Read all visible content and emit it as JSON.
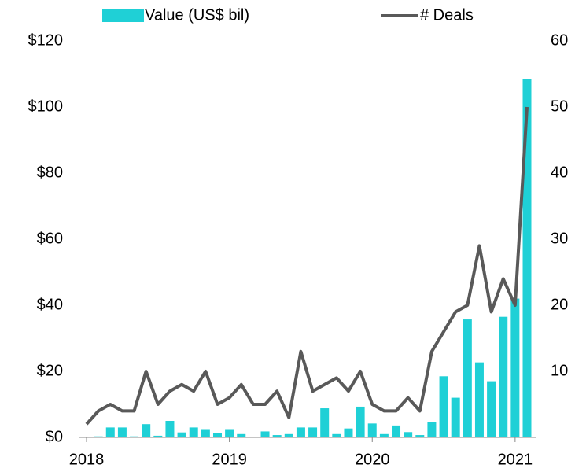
{
  "chart_data": {
    "type": "bar_line",
    "categories": [
      "2018",
      null,
      null,
      null,
      null,
      null,
      null,
      null,
      null,
      null,
      null,
      null,
      "2019",
      null,
      null,
      null,
      null,
      null,
      null,
      null,
      null,
      null,
      null,
      null,
      "2020",
      null,
      null,
      null,
      null,
      null,
      null,
      null,
      null,
      null,
      null,
      null,
      "2021",
      null
    ],
    "series": [
      {
        "name": "Value (US$ bil)",
        "type": "bar",
        "color": "#1fd0d6",
        "axis": "y",
        "values": [
          0,
          0.3,
          3,
          3,
          0.3,
          4,
          0.5,
          5,
          1.5,
          3,
          2.5,
          1.2,
          2.5,
          1,
          0,
          1.8,
          0.7,
          1,
          3,
          3,
          8.8,
          1,
          2.7,
          9.3,
          4.2,
          1,
          3.6,
          1.6,
          0.7,
          4.6,
          18.5,
          12,
          35.7,
          22.7,
          17,
          36.5,
          42,
          108.5
        ]
      },
      {
        "name": "# Deals",
        "type": "line",
        "color": "#595959",
        "axis": "y2",
        "values": [
          2,
          4,
          5,
          4,
          4,
          10,
          5,
          7,
          8,
          7,
          10,
          5,
          6,
          8,
          5,
          5,
          7,
          3,
          13,
          7,
          8,
          9,
          7,
          10,
          5,
          4,
          4,
          6,
          4,
          13,
          16,
          19,
          20,
          29,
          19,
          24,
          20,
          50
        ]
      }
    ],
    "ylim": [
      0,
      120
    ],
    "yticks": [
      {
        "value": 0,
        "label": "$0"
      },
      {
        "value": 20,
        "label": "$20"
      },
      {
        "value": 40,
        "label": "$40"
      },
      {
        "value": 60,
        "label": "$60"
      },
      {
        "value": 80,
        "label": "$80"
      },
      {
        "value": 100,
        "label": "$100"
      },
      {
        "value": 120,
        "label": "$120"
      }
    ],
    "y2lim": [
      0,
      60
    ],
    "y2ticks": [
      10,
      20,
      30,
      40,
      50,
      60
    ],
    "legend": "top"
  }
}
